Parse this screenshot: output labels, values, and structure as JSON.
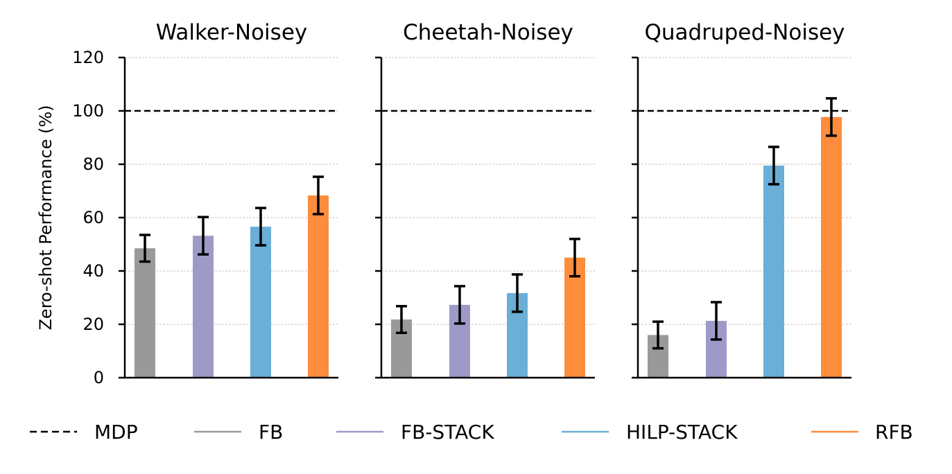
{
  "chart_data": {
    "type": "bar",
    "ylabel": "Zero-shot Performance (%)",
    "ylim": [
      0,
      120
    ],
    "yticks": [
      0,
      20,
      40,
      60,
      80,
      100,
      120
    ],
    "grid": true,
    "reference_line": {
      "label": "MDP",
      "value": 100,
      "style": "dashed",
      "color": "#000000"
    },
    "series": [
      {
        "name": "FB",
        "color": "#999999"
      },
      {
        "name": "FB-STACK",
        "color": "#9e9ac8"
      },
      {
        "name": "HILP-STACK",
        "color": "#6baed6"
      },
      {
        "name": "RFB",
        "color": "#fd8d3c"
      }
    ],
    "panels": [
      {
        "title": "Walker-Noisey",
        "values": [
          48.5,
          53.2,
          56.6,
          68.3
        ],
        "errors": [
          5.0,
          7.0,
          7.0,
          7.0
        ]
      },
      {
        "title": "Cheetah-Noisey",
        "values": [
          21.8,
          27.3,
          31.7,
          45.0
        ],
        "errors": [
          5.0,
          7.0,
          7.0,
          7.0
        ]
      },
      {
        "title": "Quadruped-Noisey",
        "values": [
          16.0,
          21.3,
          79.5,
          97.7
        ],
        "errors": [
          5.0,
          7.0,
          7.0,
          7.0
        ]
      }
    ],
    "legend": {
      "placement": "bottom",
      "entries": [
        "MDP",
        "FB",
        "FB-STACK",
        "HILP-STACK",
        "RFB"
      ]
    }
  }
}
